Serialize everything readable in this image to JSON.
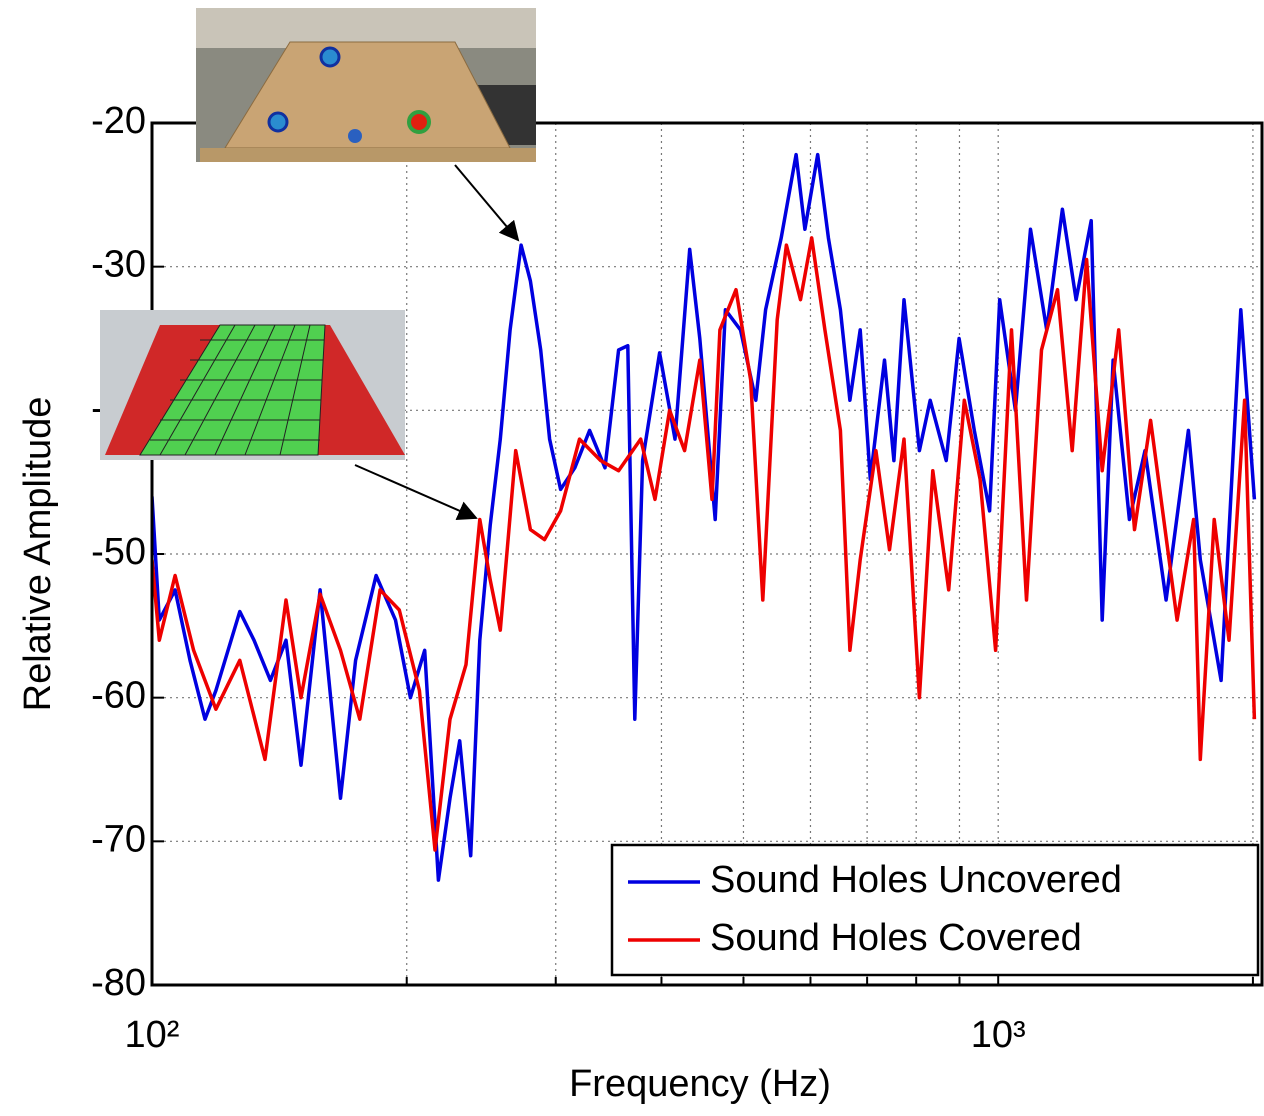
{
  "chart_data": {
    "type": "line",
    "xlabel": "Frequency (Hz)",
    "ylabel": "Relative Amplitude",
    "xscale": "log",
    "grid": true,
    "legend": "lower right",
    "xlim": [
      100,
      2050
    ],
    "ylim": [
      -80,
      -20
    ],
    "xticks": [
      {
        "value": 100,
        "label": "10²"
      },
      {
        "value": 1000,
        "label": "10³"
      }
    ],
    "xminor": [
      200,
      300,
      400,
      500,
      600,
      700,
      800,
      900,
      2000
    ],
    "yticks": [
      -80,
      -70,
      -60,
      -50,
      -40,
      -30,
      -20
    ],
    "series": [
      {
        "name": "Sound Holes Uncovered",
        "color": "#0000e0",
        "x": [
          100,
          102,
          106.5,
          110.9,
          115.5,
          119,
          127,
          132,
          138,
          144,
          150,
          158,
          167,
          174,
          184,
          194,
          202,
          210,
          218,
          225,
          231,
          238,
          244,
          251,
          258,
          265,
          273,
          280,
          288,
          295,
          304,
          316,
          329,
          343,
          356,
          365,
          372,
          380,
          398,
          415,
          432,
          444,
          463,
          476,
          496,
          517,
          531,
          554,
          577,
          591,
          612,
          630,
          651,
          668,
          687,
          706,
          734,
          753,
          774,
          807,
          831,
          868,
          899,
          937,
          977,
          1004,
          1048,
          1092,
          1141,
          1191,
          1236,
          1288,
          1327,
          1367,
          1429,
          1491,
          1579,
          1678,
          1733,
          1834,
          1935,
          2008
        ],
        "values": [
          -46,
          -54.6,
          -52.5,
          -57.4,
          -61.5,
          -59.5,
          -54,
          -56,
          -58.8,
          -56,
          -64.7,
          -52.5,
          -67,
          -57.4,
          -51.5,
          -54.6,
          -60,
          -56.7,
          -72.7,
          -67,
          -63,
          -71,
          -56,
          -48,
          -42,
          -34.4,
          -28.5,
          -31,
          -35.8,
          -42,
          -45.5,
          -44,
          -41.4,
          -44,
          -35.8,
          -35.5,
          -61.5,
          -43.5,
          -36,
          -42,
          -28.8,
          -35,
          -47.6,
          -33,
          -34.4,
          -39.3,
          -33,
          -28,
          -22.2,
          -27.4,
          -22.2,
          -28,
          -33,
          -39.3,
          -34.4,
          -44.8,
          -36.5,
          -43.5,
          -32.3,
          -42.8,
          -39.3,
          -43.5,
          -35,
          -41.4,
          -47,
          -32.3,
          -40,
          -27.4,
          -34.4,
          -26,
          -32.3,
          -26.8,
          -54.6,
          -36.5,
          -47.6,
          -42.8,
          -53.2,
          -41.4,
          -50.4,
          -58.8,
          -33,
          -46.2
        ]
      },
      {
        "name": "Sound Holes Covered",
        "color": "#ee0000",
        "x": [
          100,
          102,
          106.5,
          112,
          119,
          127,
          136,
          144,
          150,
          158,
          167,
          176,
          186,
          196,
          207,
          216,
          225,
          235,
          244,
          251,
          258,
          269,
          280,
          291,
          304,
          320,
          339,
          356,
          378,
          393,
          409,
          426,
          444,
          459,
          469,
          490,
          510,
          527,
          548,
          562,
          584,
          602,
          624,
          651,
          668,
          687,
          717,
          744,
          774,
          807,
          837,
          874,
          912,
          952,
          993,
          1037,
          1080,
          1125,
          1175,
          1223,
          1272,
          1327,
          1388,
          1449,
          1514,
          1627,
          1702,
          1733,
          1800,
          1874,
          1955,
          2008
        ],
        "values": [
          -50.4,
          -56,
          -51.5,
          -56.7,
          -60.8,
          -57.4,
          -64.3,
          -53.2,
          -60,
          -52.8,
          -56.7,
          -61.5,
          -52.5,
          -53.9,
          -59.5,
          -70.6,
          -61.5,
          -57.7,
          -47.6,
          -51.8,
          -55.3,
          -42.8,
          -48.3,
          -49,
          -47,
          -42,
          -43.5,
          -44.2,
          -42,
          -46.2,
          -40,
          -42.8,
          -36.5,
          -46.2,
          -34.4,
          -31.6,
          -37.9,
          -53.2,
          -33.7,
          -28.5,
          -32.3,
          -28,
          -34.4,
          -41.4,
          -56.7,
          -50.4,
          -42.8,
          -49.7,
          -42,
          -60,
          -44.2,
          -52.5,
          -39.3,
          -44.8,
          -56.7,
          -34.4,
          -53.2,
          -35.8,
          -31.6,
          -42.8,
          -29.5,
          -44.2,
          -34.4,
          -48.3,
          -40.7,
          -54.6,
          -47.6,
          -64.3,
          -47.6,
          -56,
          -39.3,
          -61.5
        ]
      }
    ]
  }
}
